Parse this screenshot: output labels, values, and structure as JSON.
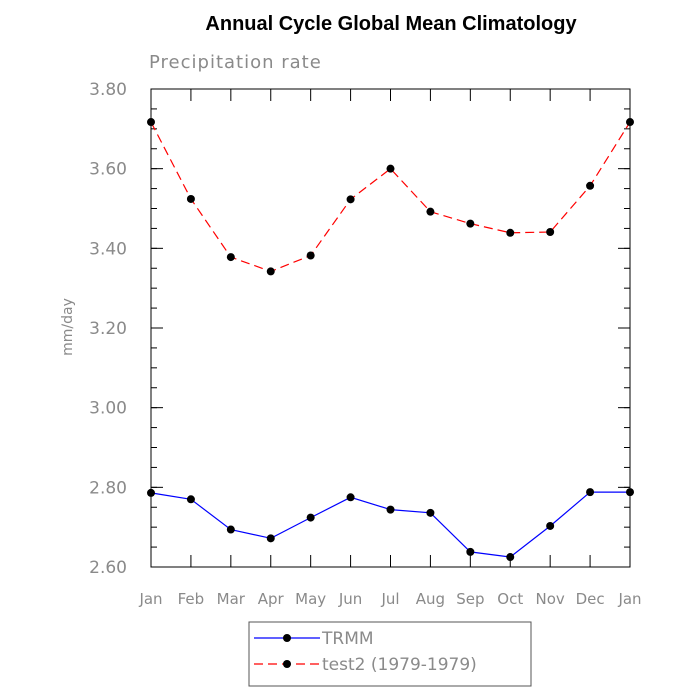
{
  "chart_data": {
    "type": "line",
    "title": "Annual Cycle Global Mean Climatology",
    "subtitle": "Precipitation rate",
    "ylabel": "mm/day",
    "xlabel": "",
    "ylim": [
      2.6,
      3.8
    ],
    "yticks": [
      "2.60",
      "2.80",
      "3.00",
      "3.20",
      "3.40",
      "3.60",
      "3.80"
    ],
    "categories": [
      "Jan",
      "Feb",
      "Mar",
      "Apr",
      "May",
      "Jun",
      "Jul",
      "Aug",
      "Sep",
      "Oct",
      "Nov",
      "Dec",
      "Jan"
    ],
    "series": [
      {
        "name": "TRMM",
        "color": "#0000ff",
        "dash": "solid",
        "values": [
          2.786,
          2.77,
          2.694,
          2.672,
          2.724,
          2.775,
          2.744,
          2.736,
          2.638,
          2.625,
          2.703,
          2.788,
          2.788
        ]
      },
      {
        "name": "test2 (1979-1979)",
        "color": "#ff0000",
        "dash": "dashed",
        "values": [
          3.717,
          3.524,
          3.378,
          3.342,
          3.382,
          3.523,
          3.6,
          3.492,
          3.462,
          3.439,
          3.441,
          3.557,
          3.717
        ]
      }
    ],
    "legend_position": "bottom",
    "grid": false
  }
}
